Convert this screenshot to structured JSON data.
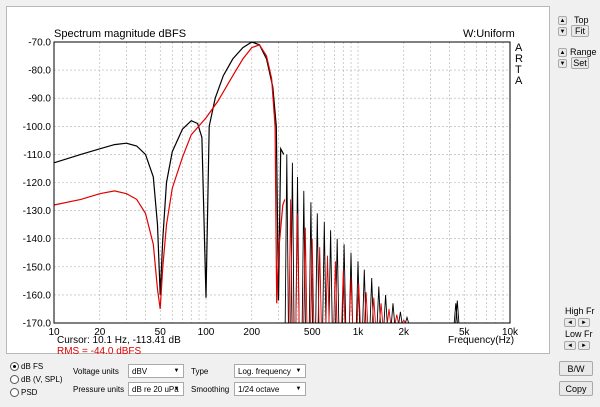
{
  "plot": {
    "title": "Spectrum magnitude dBFS",
    "window_label": "W:Uniform",
    "brand_letters": [
      "A",
      "R",
      "T",
      "A"
    ],
    "cursor_text": "Cursor:   10.1 Hz, -113.41 dB",
    "rms_text": "RMS =  -44.0 dBFS",
    "xaxis_label": "Frequency(Hz)",
    "colors": {
      "black_trace": "#000000",
      "red_trace": "#e00000",
      "grid": "#b0b0b0"
    }
  },
  "chart_data": {
    "type": "line",
    "title": "Spectrum magnitude dBFS",
    "xlabel": "Frequency(Hz)",
    "ylabel": "",
    "xscale": "log",
    "xlim": [
      10,
      10000
    ],
    "ylim": [
      -170,
      -70
    ],
    "grid": true,
    "xticks": [
      10,
      20,
      50,
      100,
      200,
      500,
      1000,
      2000,
      5000,
      10000
    ],
    "xtick_labels": [
      "10",
      "20",
      "50",
      "100",
      "200",
      "500",
      "1k",
      "2k",
      "5k",
      "10k"
    ],
    "yticks": [
      -70,
      -80,
      -90,
      -100,
      -110,
      -120,
      -130,
      -140,
      -150,
      -160,
      -170
    ],
    "ytick_labels": [
      "-70.0",
      "-80.0",
      "-90.0",
      "-100.0",
      "-110.0",
      "-120.0",
      "-130.0",
      "-140.0",
      "-150.0",
      "-160.0",
      "-170.0"
    ],
    "series": [
      {
        "color": "#000000",
        "points": [
          [
            10,
            -113
          ],
          [
            15,
            -110
          ],
          [
            20,
            -108
          ],
          [
            25,
            -106.5
          ],
          [
            30,
            -106
          ],
          [
            35,
            -107
          ],
          [
            40,
            -110
          ],
          [
            45,
            -118
          ],
          [
            48,
            -135
          ],
          [
            50,
            -160
          ],
          [
            52,
            -140
          ],
          [
            55,
            -120
          ],
          [
            60,
            -109
          ],
          [
            70,
            -101
          ],
          [
            80,
            -98
          ],
          [
            88,
            -99
          ],
          [
            94,
            -104
          ],
          [
            100,
            -161
          ],
          [
            105,
            -100
          ],
          [
            115,
            -90
          ],
          [
            130,
            -82
          ],
          [
            150,
            -76
          ],
          [
            175,
            -72
          ],
          [
            200,
            -70
          ],
          [
            225,
            -71
          ],
          [
            250,
            -76
          ],
          [
            275,
            -86
          ],
          [
            290,
            -100
          ],
          [
            300,
            -162
          ],
          [
            310,
            -108
          ],
          [
            325,
            -110
          ]
        ],
        "comb": [
          [
            340,
            -110,
            -170
          ],
          [
            370,
            -113,
            -170
          ],
          [
            400,
            -118,
            -170
          ],
          [
            440,
            -123,
            -170
          ],
          [
            490,
            -127,
            -170
          ],
          [
            540,
            -131,
            -170
          ],
          [
            600,
            -134,
            -170
          ],
          [
            660,
            -137,
            -170
          ],
          [
            730,
            -140,
            -170
          ],
          [
            810,
            -142,
            -170
          ],
          [
            900,
            -145,
            -170
          ],
          [
            1000,
            -148,
            -170
          ],
          [
            1100,
            -151,
            -170
          ],
          [
            1230,
            -154,
            -170
          ],
          [
            1370,
            -157,
            -170
          ],
          [
            1520,
            -160,
            -170
          ],
          [
            1700,
            -163,
            -170
          ],
          [
            1900,
            -166,
            -170
          ],
          [
            2100,
            -168,
            -170
          ],
          [
            4400,
            -163,
            -170
          ],
          [
            4500,
            -162,
            -170
          ]
        ]
      },
      {
        "color": "#e00000",
        "points": [
          [
            10,
            -128
          ],
          [
            15,
            -126
          ],
          [
            20,
            -124
          ],
          [
            25,
            -123
          ],
          [
            30,
            -124
          ],
          [
            35,
            -126
          ],
          [
            40,
            -131
          ],
          [
            45,
            -142
          ],
          [
            48,
            -158
          ],
          [
            50,
            -165
          ],
          [
            52,
            -150
          ],
          [
            55,
            -135
          ],
          [
            60,
            -122
          ],
          [
            70,
            -111
          ],
          [
            80,
            -103
          ],
          [
            100,
            -97
          ],
          [
            120,
            -91
          ],
          [
            150,
            -82
          ],
          [
            175,
            -76
          ],
          [
            200,
            -72
          ],
          [
            225,
            -71
          ],
          [
            250,
            -75
          ],
          [
            270,
            -83
          ],
          [
            285,
            -100
          ],
          [
            292,
            -163
          ],
          [
            300,
            -145
          ],
          [
            320,
            -128
          ],
          [
            330,
            -126
          ]
        ],
        "comb": [
          [
            360,
            -126,
            -170
          ],
          [
            400,
            -131,
            -170
          ],
          [
            450,
            -136,
            -170
          ],
          [
            500,
            -140,
            -170
          ],
          [
            560,
            -143,
            -170
          ],
          [
            630,
            -146,
            -170
          ],
          [
            710,
            -148,
            -170
          ],
          [
            800,
            -151,
            -170
          ],
          [
            900,
            -154,
            -170
          ],
          [
            1010,
            -156,
            -170
          ],
          [
            1130,
            -159,
            -170
          ],
          [
            1270,
            -161,
            -170
          ],
          [
            1420,
            -163,
            -170
          ],
          [
            1600,
            -165,
            -170
          ],
          [
            1800,
            -167,
            -170
          ],
          [
            2000,
            -169,
            -170
          ]
        ]
      }
    ]
  },
  "side": {
    "top_label": "Top",
    "fit_label": "Fit",
    "range_label": "Range",
    "set_label": "Set",
    "high_fr_label": "High Fr",
    "low_fr_label": "Low Fr",
    "arrow_up": "▲",
    "arrow_down": "▼",
    "arrow_left": "◄",
    "arrow_right": "►"
  },
  "bottom": {
    "radios": [
      {
        "label": "dB FS",
        "selected": true
      },
      {
        "label": "dB (V, SPL)",
        "selected": false
      },
      {
        "label": "PSD",
        "selected": false
      }
    ],
    "voltage_units_label": "Voltage units",
    "voltage_units_value": "dBV",
    "pressure_units_label": "Pressure units",
    "pressure_units_value": "dB re 20 uPa",
    "type_label": "Type",
    "type_value": "Log. frequency",
    "smoothing_label": "Smoothing",
    "smoothing_value": "1/24 octave",
    "bw_button": "B/W",
    "copy_button": "Copy"
  }
}
